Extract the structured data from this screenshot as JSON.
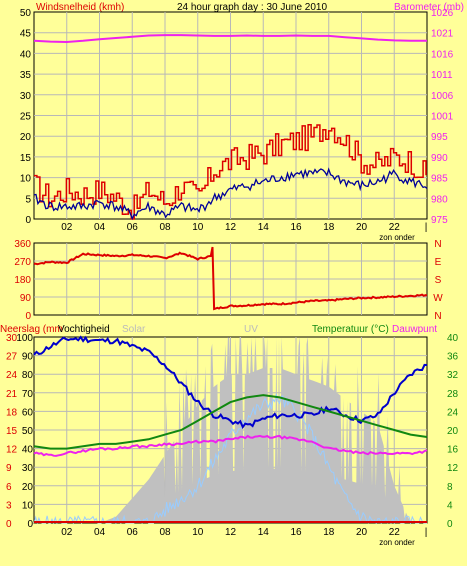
{
  "header": {
    "left_title": "Windsnelheid (kmh)",
    "center_title": "24 hour graph day : 30 June 2010",
    "right_title": "Barometer (mb)"
  },
  "footer": {
    "zon_onder_1": "zon onder",
    "zon_onder_2": "zon onder"
  },
  "colors": {
    "background": "#ffff99",
    "grid": "#b8b8b8",
    "wind": "#dd0000",
    "gust": "#000099",
    "barometer": "#ee22ee",
    "direction": "#dd0000",
    "humidity": "#0000cc",
    "temperature": "#118811",
    "dewpoint": "#ee22ee",
    "solar": "#c0c0c0",
    "uv": "#99ccff"
  },
  "x_ticks": [
    "02",
    "04",
    "06",
    "08",
    "10",
    "12",
    "14",
    "16",
    "18",
    "20",
    "22"
  ],
  "chart_data": [
    {
      "type": "line",
      "title": "24 hour graph day : 30 June 2010",
      "x": [
        0,
        1,
        2,
        3,
        4,
        5,
        6,
        7,
        8,
        9,
        10,
        11,
        12,
        13,
        14,
        15,
        16,
        17,
        18,
        19,
        20,
        21,
        22,
        23,
        24
      ],
      "y_left": {
        "label": "Windsnelheid (kmh)",
        "range": [
          0,
          50
        ],
        "ticks": [
          "0",
          "5",
          "10",
          "15",
          "20",
          "25",
          "30",
          "35",
          "40",
          "45",
          "50"
        ]
      },
      "y_right": {
        "label": "Barometer (mb)",
        "range": [
          975,
          1026
        ],
        "ticks": [
          "975",
          "980",
          "985",
          "990",
          "995",
          "1001",
          "1006",
          "1011",
          "1016",
          "1021",
          "1026"
        ]
      },
      "series": [
        {
          "name": "Windsnelheid",
          "axis": "left",
          "values": [
            8,
            5,
            7,
            6,
            7,
            5,
            2,
            7,
            4,
            8,
            5,
            12,
            14,
            15,
            16,
            18,
            19,
            20,
            23,
            19,
            14,
            13,
            15,
            14,
            10
          ]
        },
        {
          "name": "",
          "axis": "left",
          "values": [
            5,
            3,
            3,
            3,
            4,
            3,
            1,
            3,
            1,
            3,
            2,
            5,
            7,
            8,
            9,
            10,
            11,
            11,
            11,
            9,
            8,
            9,
            11,
            9,
            8
          ]
        },
        {
          "name": "Barometer",
          "axis": "right",
          "values": [
            1018.9,
            1018.7,
            1018.6,
            1018.9,
            1019.3,
            1019.6,
            1019.9,
            1020.2,
            1020.3,
            1020.3,
            1020.2,
            1020.1,
            1020.1,
            1020.2,
            1020.1,
            1020.1,
            1020.2,
            1020.1,
            1020.1,
            1019.8,
            1019.5,
            1019.2,
            1019.0,
            1018.9,
            1018.9
          ]
        }
      ]
    },
    {
      "type": "line",
      "y_left": {
        "label": "",
        "range": [
          0,
          360
        ],
        "ticks": [
          "0",
          "90",
          "180",
          "270",
          "360"
        ]
      },
      "y_right": {
        "label": "",
        "ticks": [
          "N",
          "W",
          "S",
          "E",
          "N"
        ]
      },
      "x": [
        0,
        1,
        2,
        3,
        4,
        5,
        6,
        7,
        8,
        9,
        10,
        10.8,
        10.9,
        11,
        12,
        13,
        14,
        15,
        16,
        17,
        18,
        19,
        20,
        21,
        22,
        23,
        24
      ],
      "series": [
        {
          "name": "",
          "values": [
            255,
            265,
            262,
            305,
            300,
            295,
            300,
            295,
            285,
            310,
            280,
            295,
            340,
            30,
            45,
            48,
            55,
            55,
            62,
            70,
            72,
            80,
            85,
            88,
            92,
            96,
            100
          ]
        }
      ]
    },
    {
      "type": "line",
      "x": [
        0,
        1,
        2,
        3,
        4,
        5,
        6,
        7,
        8,
        9,
        10,
        11,
        12,
        13,
        14,
        15,
        16,
        17,
        18,
        19,
        20,
        21,
        22,
        23,
        24
      ],
      "y_left": {
        "label": "Neerslag (mm",
        "range": [
          0,
          30
        ],
        "ticks": [
          "0",
          "3",
          "6",
          "9",
          "12",
          "15",
          "18",
          "21",
          "24",
          "27",
          "30"
        ]
      },
      "y_left2": {
        "label": "Vochtigheid",
        "range": [
          0,
          100
        ],
        "ticks": [
          "0",
          "10",
          "20",
          "30",
          "40",
          "50",
          "60",
          "70",
          "80",
          "90",
          "100"
        ]
      },
      "y_right": {
        "label": "Temperatuur (°C)",
        "range": [
          0,
          40
        ],
        "ticks": [
          "0",
          "4",
          "8",
          "12",
          "16",
          "20",
          "24",
          "28",
          "32",
          "36",
          "40"
        ]
      },
      "extra_labels": {
        "solar": "Solar",
        "uv": "UV",
        "dewpoint": "Dauwpunt"
      },
      "series": [
        {
          "name": "Vochtigheid",
          "axis": "left2",
          "values": [
            90,
            95,
            99,
            99,
            98,
            98,
            95,
            92,
            85,
            75,
            65,
            58,
            55,
            52,
            56,
            58,
            58,
            58,
            62,
            58,
            55,
            58,
            70,
            80,
            85
          ]
        },
        {
          "name": "Temperatuur (°C)",
          "axis": "right",
          "values": [
            16.5,
            16,
            16,
            16.5,
            17,
            17,
            17.5,
            18,
            19,
            20,
            22,
            24,
            26,
            27,
            27.5,
            27,
            26,
            25,
            24,
            23,
            22,
            21,
            20,
            19,
            18.5
          ]
        },
        {
          "name": "Dauwpunt",
          "axis": "right",
          "values": [
            15,
            14.5,
            15,
            15.5,
            16,
            16,
            16.5,
            16.5,
            17,
            17,
            17.5,
            17.5,
            18,
            18.5,
            18.5,
            18.5,
            18,
            17.5,
            16,
            15.5,
            15,
            15,
            15,
            15,
            15.5
          ]
        },
        {
          "name": "Solar",
          "axis": "left",
          "values": [
            0,
            0,
            0,
            0,
            0,
            1,
            4,
            7,
            11,
            15,
            19,
            22,
            24,
            24,
            25,
            25,
            24,
            23,
            22,
            20,
            18,
            16,
            6,
            0,
            0
          ]
        },
        {
          "name": "UV",
          "axis": "left",
          "values": [
            0,
            0,
            0,
            0,
            0,
            0,
            0,
            0,
            2,
            4,
            6,
            10,
            14,
            17,
            19,
            20,
            18,
            14,
            9,
            4,
            1,
            0,
            0,
            0,
            0
          ]
        },
        {
          "name": "Neerslag",
          "axis": "left",
          "values": [
            0,
            0,
            0,
            0,
            0,
            0,
            0,
            0,
            0,
            0,
            0,
            0,
            0,
            0,
            0,
            0,
            0,
            0,
            0,
            0,
            0,
            0,
            0,
            0,
            0
          ]
        }
      ]
    }
  ]
}
